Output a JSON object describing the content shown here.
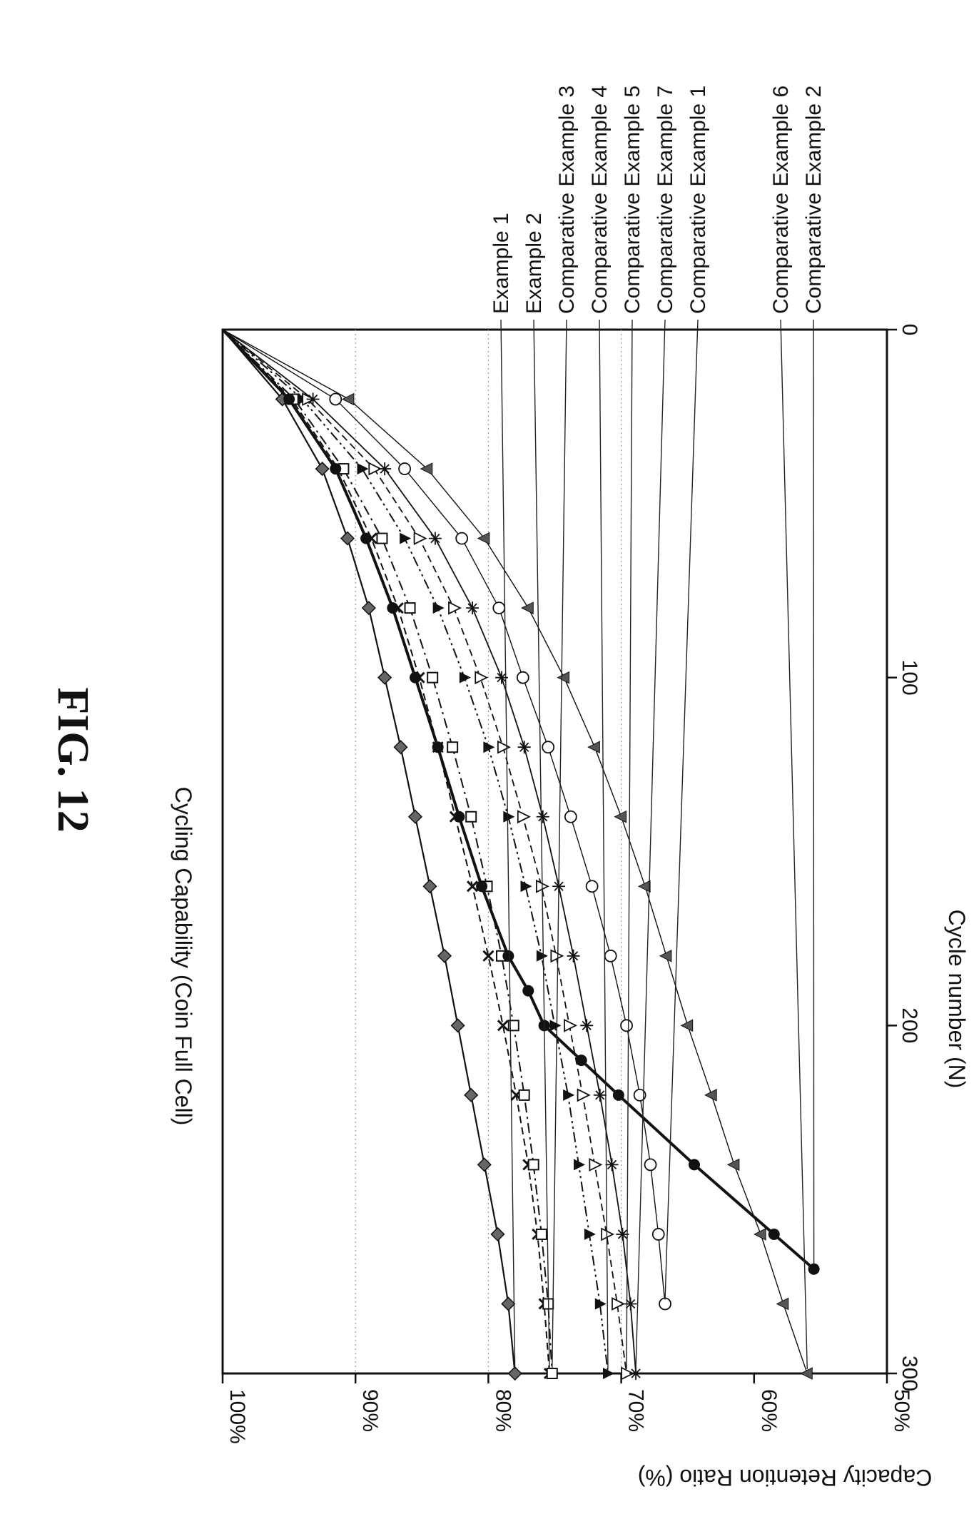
{
  "figure_label": "FIG. 12",
  "chart_data": {
    "type": "line",
    "title": "Cycling Capability (Coin Full Cell)",
    "xlabel": "Cycle number (N)",
    "ylabel": "Capacity Retention Ratio (%)",
    "xlim": [
      0,
      300
    ],
    "ylim": [
      50,
      100
    ],
    "x_ticks": [
      "0",
      "100",
      "200",
      "300"
    ],
    "y_ticks": [
      "100%",
      "90%",
      "80%",
      "70%",
      "60%",
      "50%"
    ],
    "grid": "horizontal dotted lines at 70%, 80%, 90%",
    "orientation": "rotated 90 degrees clockwise",
    "legend_placement": "top-right, labels with leader lines",
    "series": [
      {
        "name": "Example 1",
        "marker": "diamond",
        "dash": "solid",
        "width": 2.2,
        "x": [
          0,
          20,
          40,
          60,
          80,
          100,
          120,
          140,
          160,
          180,
          200,
          220,
          240,
          260,
          280,
          300
        ],
        "y": [
          100,
          95.5,
          92.5,
          90.6,
          89.0,
          87.8,
          86.6,
          85.5,
          84.4,
          83.3,
          82.3,
          81.3,
          80.3,
          79.3,
          78.5,
          78.0
        ]
      },
      {
        "name": "Example 2",
        "marker": "x",
        "dash": "dashed",
        "width": 2,
        "x": [
          0,
          20,
          40,
          60,
          80,
          100,
          120,
          140,
          160,
          180,
          200,
          220,
          240,
          260,
          280,
          300
        ],
        "y": [
          100,
          94.8,
          91.3,
          88.8,
          86.8,
          85.2,
          83.8,
          82.5,
          81.2,
          80.0,
          78.9,
          77.9,
          77.0,
          76.3,
          75.8,
          75.4
        ]
      },
      {
        "name": "Comparative Example 3",
        "marker": "square",
        "dash": "dashdot",
        "width": 2,
        "x": [
          0,
          20,
          40,
          60,
          80,
          100,
          120,
          140,
          160,
          180,
          200,
          220,
          240,
          260,
          280,
          300
        ],
        "y": [
          100,
          94.6,
          90.9,
          88.0,
          85.9,
          84.2,
          82.7,
          81.3,
          80.1,
          79.0,
          78.1,
          77.3,
          76.6,
          76.0,
          75.5,
          75.2
        ]
      },
      {
        "name": "Comparative Example 4",
        "marker": "triangle-down",
        "dash": "dashdotdot",
        "width": 2,
        "x": [
          0,
          20,
          40,
          60,
          80,
          100,
          120,
          140,
          160,
          180,
          200,
          220,
          240,
          260,
          280,
          300
        ],
        "y": [
          100,
          94.0,
          89.5,
          86.3,
          83.8,
          81.8,
          80.0,
          78.5,
          77.2,
          76.0,
          75.0,
          74.0,
          73.2,
          72.4,
          71.6,
          71.0
        ]
      },
      {
        "name": "Comparative Example 5",
        "marker": "triangle-open",
        "dash": "dashed",
        "width": 1.8,
        "x": [
          0,
          20,
          40,
          60,
          80,
          100,
          120,
          140,
          160,
          180,
          200,
          220,
          240,
          260,
          280,
          300
        ],
        "y": [
          100,
          93.6,
          88.6,
          85.2,
          82.6,
          80.6,
          78.9,
          77.4,
          76.0,
          74.9,
          73.9,
          72.9,
          72.0,
          71.1,
          70.3,
          69.6
        ]
      },
      {
        "name": "Comparative Example 7",
        "marker": "asterisk",
        "dash": "solid",
        "width": 1.8,
        "x": [
          0,
          20,
          40,
          60,
          80,
          100,
          120,
          140,
          160,
          180,
          200,
          220,
          240,
          260,
          280,
          300
        ],
        "y": [
          100,
          93.2,
          87.8,
          84.0,
          81.2,
          79.0,
          77.3,
          75.9,
          74.7,
          73.6,
          72.6,
          71.6,
          70.7,
          69.9,
          69.3,
          68.9
        ]
      },
      {
        "name": "Comparative Example 1",
        "marker": "circle-open",
        "dash": "solid",
        "width": 1.4,
        "x": [
          0,
          20,
          40,
          60,
          80,
          100,
          120,
          140,
          160,
          180,
          200,
          220,
          240,
          260,
          280
        ],
        "y": [
          100,
          91.5,
          86.3,
          82.0,
          79.2,
          77.4,
          75.5,
          73.8,
          72.2,
          70.8,
          69.6,
          68.6,
          67.8,
          67.2,
          66.7
        ]
      },
      {
        "name": "Comparative Example 6",
        "marker": "triangle-filled",
        "dash": "solid",
        "width": 1.4,
        "x": [
          0,
          20,
          40,
          60,
          80,
          100,
          120,
          140,
          160,
          180,
          200,
          220,
          240,
          260,
          280,
          300
        ],
        "y": [
          100,
          90.5,
          84.6,
          80.3,
          77.0,
          74.3,
          72.0,
          70.0,
          68.2,
          66.6,
          65.0,
          63.2,
          61.5,
          59.5,
          57.8,
          56.0
        ]
      },
      {
        "name": "Comparative Example 2",
        "marker": "circle-filled",
        "dash": "solid",
        "width": 4,
        "x": [
          0,
          20,
          40,
          60,
          80,
          100,
          120,
          140,
          160,
          180,
          190,
          200,
          210,
          220,
          240,
          260,
          270
        ],
        "y": [
          100,
          95.0,
          91.5,
          89.2,
          87.2,
          85.5,
          83.8,
          82.2,
          80.5,
          78.5,
          77.0,
          75.8,
          73.0,
          70.2,
          64.5,
          58.5,
          55.5
        ]
      }
    ]
  }
}
